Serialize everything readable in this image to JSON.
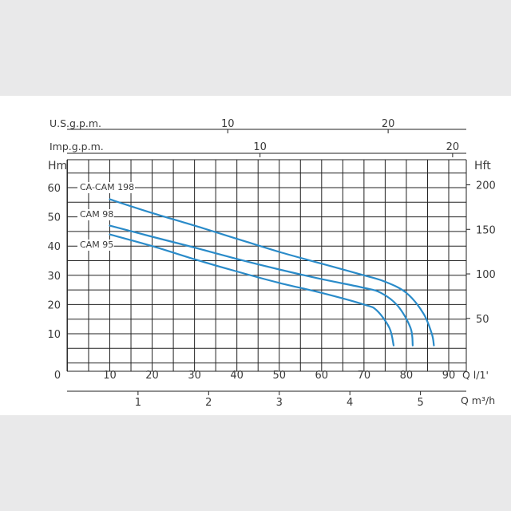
{
  "chart_data": {
    "type": "line",
    "title": "",
    "colors": {
      "curve": "#2a8bc9",
      "grid": "#222222",
      "text": "#3a3a3a",
      "background": "#ffffff"
    },
    "grid": true,
    "x_flow_lpm": {
      "label": "Q l/1'",
      "range": [
        0,
        90
      ],
      "ticks": [
        0,
        10,
        20,
        30,
        40,
        50,
        60,
        70,
        80,
        90
      ]
    },
    "x_flow_m3h": {
      "label": "Q m³/h",
      "range": [
        0,
        5.4
      ],
      "ticks": [
        1,
        2,
        3,
        4,
        5
      ]
    },
    "x_usgpm": {
      "label": "U.S.g.p.m.",
      "ticks": [
        10,
        20
      ]
    },
    "x_impgpm": {
      "label": "Imp.g.p.m.",
      "ticks": [
        10,
        20
      ]
    },
    "y_head_m": {
      "label": "Hm",
      "range": [
        0,
        70
      ],
      "ticks": [
        10,
        20,
        30,
        40,
        50,
        60
      ]
    },
    "y_head_ft": {
      "label": "Hft",
      "ticks": [
        50,
        100,
        150,
        200
      ]
    },
    "series": [
      {
        "name": "CA-CAM 198",
        "points": [
          [
            10,
            56
          ],
          [
            20,
            51.3
          ],
          [
            30,
            47
          ],
          [
            40,
            42.5
          ],
          [
            50,
            38
          ],
          [
            60,
            34
          ],
          [
            70,
            30
          ],
          [
            75,
            27.8
          ],
          [
            80,
            24
          ],
          [
            84,
            17
          ],
          [
            86,
            10
          ],
          [
            86.5,
            6
          ]
        ]
      },
      {
        "name": "CAM 98",
        "points": [
          [
            10,
            47
          ],
          [
            20,
            43.2
          ],
          [
            30,
            39.5
          ],
          [
            40,
            35.6
          ],
          [
            50,
            32
          ],
          [
            60,
            28.7
          ],
          [
            70,
            25.7
          ],
          [
            74,
            24
          ],
          [
            78,
            19.5
          ],
          [
            81,
            12
          ],
          [
            81.5,
            6
          ]
        ]
      },
      {
        "name": "CAM 95",
        "points": [
          [
            10,
            44
          ],
          [
            20,
            40
          ],
          [
            30,
            35.5
          ],
          [
            40,
            31.3
          ],
          [
            50,
            27.4
          ],
          [
            60,
            24
          ],
          [
            70,
            20
          ],
          [
            73,
            18
          ],
          [
            76,
            12
          ],
          [
            77,
            6
          ]
        ]
      }
    ]
  }
}
